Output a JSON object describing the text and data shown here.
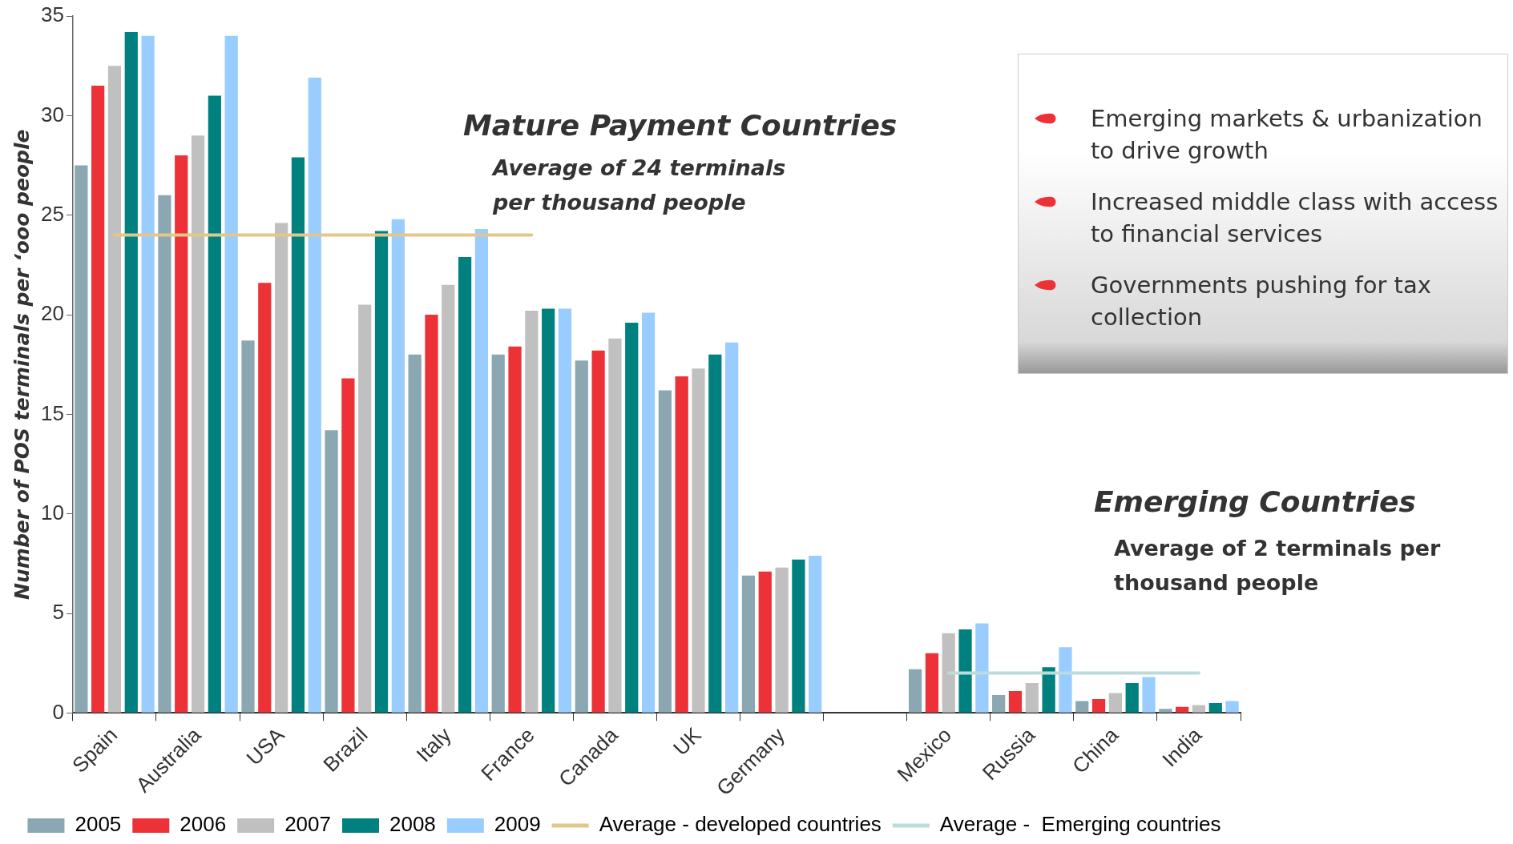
{
  "chart_data": {
    "type": "bar",
    "ylabel": "Number of POS terminals per ‘ooo people",
    "categories": [
      "Spain",
      "Australia",
      "USA",
      "Brazil",
      "Italy",
      "France",
      "Canada",
      "UK",
      "Germany",
      null,
      "Mexico",
      "Russia",
      "China",
      "India"
    ],
    "series": [
      {
        "name": "2005",
        "color": "#8ba7b2",
        "values": [
          27.5,
          26.0,
          18.7,
          14.2,
          18.0,
          18.0,
          17.7,
          16.2,
          6.9,
          null,
          2.2,
          0.9,
          0.6,
          0.2
        ]
      },
      {
        "name": "2006",
        "color": "#ec3237",
        "values": [
          31.5,
          28.0,
          21.6,
          16.8,
          20.0,
          18.4,
          18.2,
          16.9,
          7.1,
          null,
          3.0,
          1.1,
          0.7,
          0.3
        ]
      },
      {
        "name": "2007",
        "color": "#c0c0c0",
        "values": [
          32.5,
          29.0,
          24.6,
          20.5,
          21.5,
          20.2,
          18.8,
          17.3,
          7.3,
          null,
          4.0,
          1.5,
          1.0,
          0.4
        ]
      },
      {
        "name": "2008",
        "color": "#00807f",
        "values": [
          34.2,
          31.0,
          27.9,
          24.2,
          22.9,
          20.3,
          19.6,
          18.0,
          7.7,
          null,
          4.2,
          2.3,
          1.5,
          0.5
        ]
      },
      {
        "name": "2009",
        "color": "#99ccff",
        "values": [
          34.0,
          34.0,
          31.9,
          24.8,
          24.3,
          20.3,
          20.1,
          18.6,
          7.9,
          null,
          4.5,
          3.3,
          1.8,
          0.6
        ]
      },
      {
        "name": "Average - developed countries",
        "type": "line",
        "color": "#e3c78a",
        "values": [
          24,
          24,
          24,
          24,
          24,
          24,
          null,
          null,
          null,
          null,
          null,
          null,
          null,
          null
        ]
      },
      {
        "name": "Average -  Emerging countries",
        "type": "line",
        "color": "#bcdbda",
        "values": [
          null,
          null,
          null,
          null,
          null,
          null,
          null,
          null,
          null,
          null,
          2,
          2,
          2,
          2
        ]
      }
    ],
    "ylim": [
      0,
      35
    ],
    "yticks": [
      0,
      5,
      10,
      15,
      20,
      25,
      30,
      35
    ],
    "grid": false,
    "legend": "bottom",
    "marker": "none",
    "annotations": [
      "Mature Payment Countries",
      "Average of 24 terminals per thousand people",
      "Emerging Countries",
      "Average of 2 terminals per thousand people",
      "Emerging markets & urbanization to drive growth",
      "Increased middle class with access to financial services",
      "Governments pushing for tax collection"
    ]
  }
}
